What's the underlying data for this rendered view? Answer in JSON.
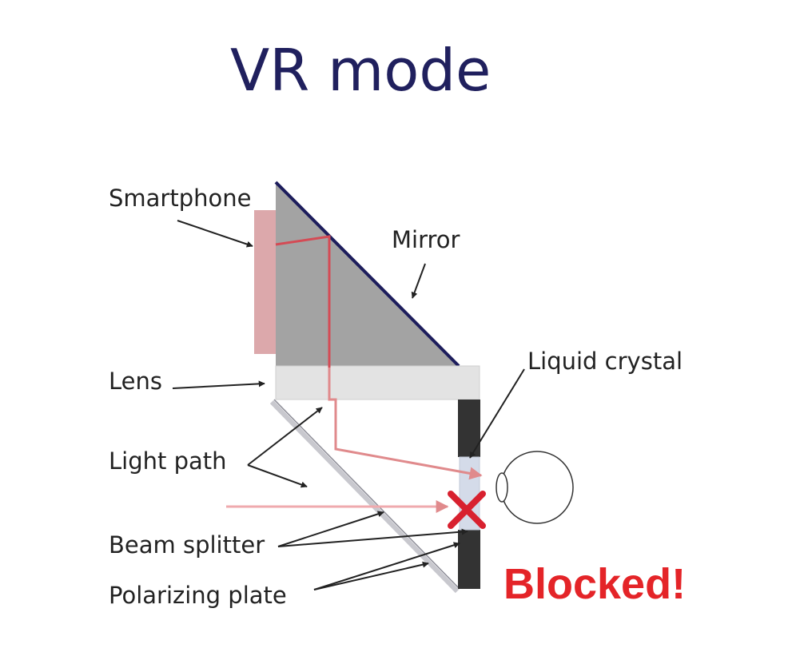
{
  "title": "VR mode",
  "labels": {
    "smartphone": "Smartphone",
    "mirror": "Mirror",
    "lens": "Lens",
    "liquid_crystal": "Liquid crystal",
    "light_path": "Light path",
    "beam_splitter": "Beam splitter",
    "polarizing_plate": "Polarizing plate"
  },
  "status": {
    "text": "Blocked!"
  },
  "colors": {
    "title": "#20205e",
    "mirror_line": "#1d1d5c",
    "light_ray": "#e08a8c",
    "blocked_text": "#e42428",
    "block_mark": "#d8212f",
    "smartphone": "#dca8ab",
    "housing": "#a3a3a3",
    "lens": "#e3e3e3"
  }
}
